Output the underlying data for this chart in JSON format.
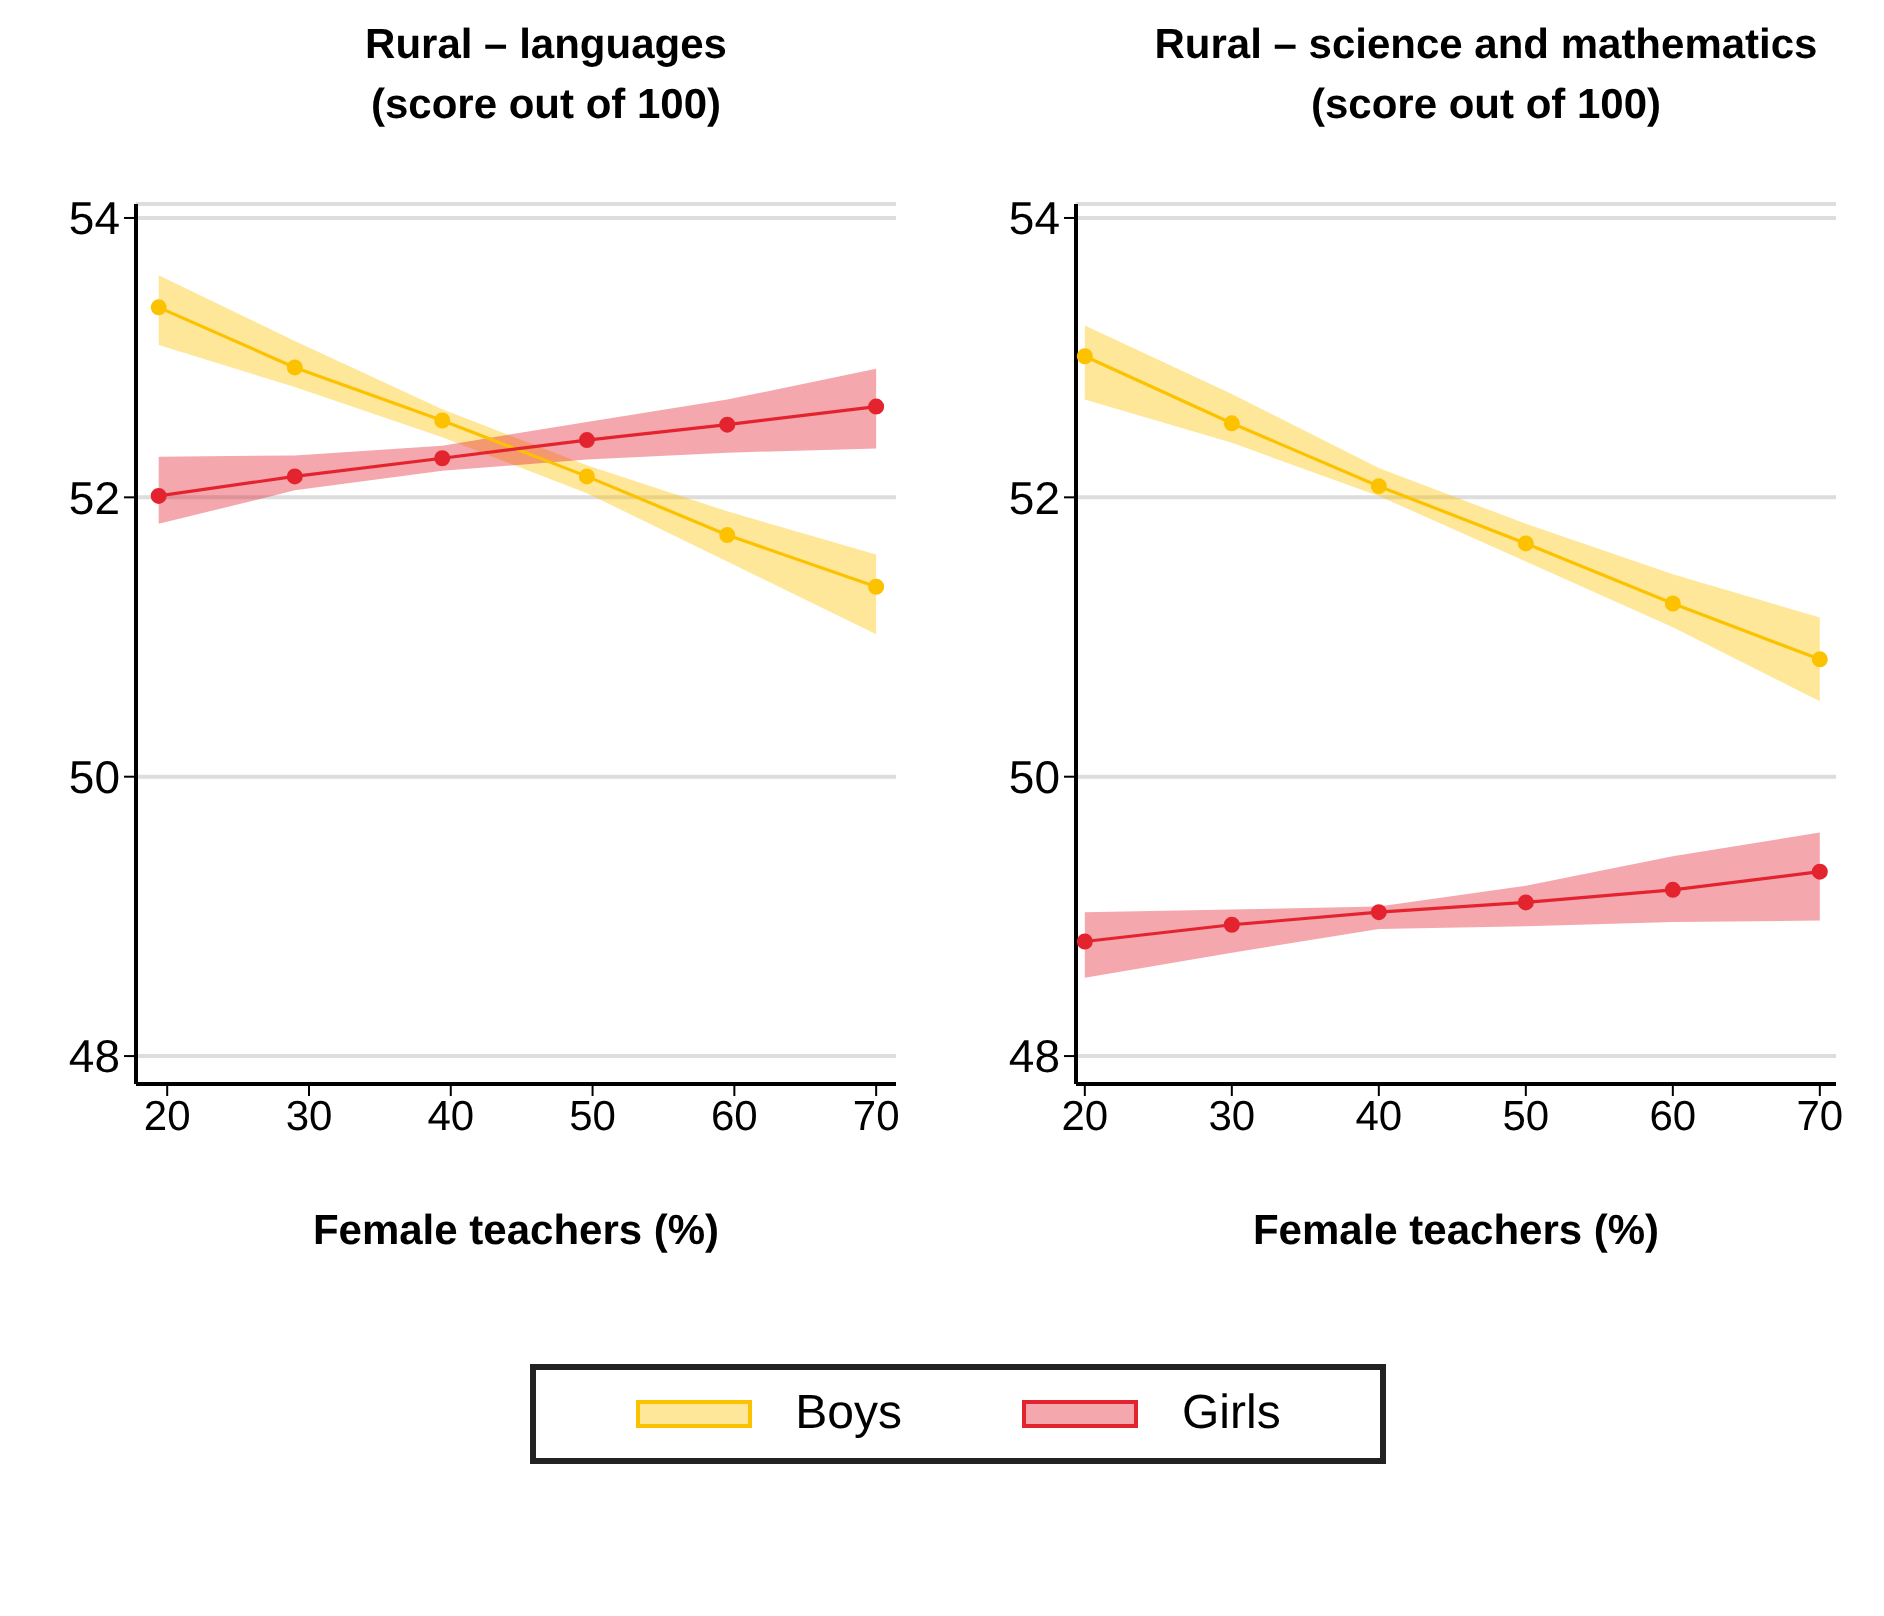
{
  "chart_data": [
    {
      "type": "line",
      "title": "Rural – languages\n(score out of 100)",
      "xlabel": "Female teachers (%)",
      "x": [
        19.4,
        29,
        39.4,
        49.6,
        59.5,
        70
      ],
      "xlim": [
        17.8,
        71.4
      ],
      "xticks": [
        20,
        30,
        40,
        50,
        60,
        70
      ],
      "ylim": [
        47.8,
        54.1
      ],
      "yticks": [
        48,
        50,
        52,
        54
      ],
      "grid": "y",
      "marker": "circle",
      "legend": "bottom",
      "series": [
        {
          "name": "Boys",
          "color": "#fcc200",
          "values": [
            53.36,
            52.93,
            52.55,
            52.15,
            51.73,
            51.36
          ],
          "lower": [
            53.09,
            52.79,
            52.43,
            52.03,
            51.54,
            51.02
          ],
          "upper": [
            53.59,
            53.12,
            52.63,
            52.23,
            51.9,
            51.59
          ]
        },
        {
          "name": "Girls",
          "color": "#e3242f",
          "values": [
            52.01,
            52.15,
            52.28,
            52.41,
            52.52,
            52.65
          ],
          "lower": [
            51.81,
            52.05,
            52.19,
            52.27,
            52.32,
            52.35
          ],
          "upper": [
            52.29,
            52.3,
            52.37,
            52.54,
            52.7,
            52.92
          ]
        }
      ]
    },
    {
      "type": "line",
      "title": "Rural – science and mathematics\n(score out of 100)",
      "xlabel": "Female teachers (%)",
      "x": [
        20,
        30,
        40,
        50,
        60,
        70
      ],
      "xlim": [
        19.4,
        71.1
      ],
      "xticks": [
        20,
        30,
        40,
        50,
        60,
        70
      ],
      "ylim": [
        47.8,
        54.1
      ],
      "yticks": [
        48,
        50,
        52,
        54
      ],
      "grid": "y",
      "marker": "circle",
      "series": [
        {
          "color": "#fcc200",
          "values": [
            53.01,
            52.53,
            52.08,
            51.67,
            51.24,
            50.84
          ],
          "lower": [
            52.7,
            52.39,
            52.01,
            51.54,
            51.07,
            50.54
          ],
          "upper": [
            53.23,
            52.74,
            52.21,
            51.81,
            51.45,
            51.14
          ]
        },
        {
          "color": "#e3242f",
          "values": [
            48.82,
            48.94,
            49.03,
            49.1,
            49.19,
            49.32
          ],
          "lower": [
            48.56,
            48.74,
            48.91,
            48.93,
            48.96,
            48.97
          ],
          "upper": [
            49.03,
            49.05,
            49.07,
            49.22,
            49.43,
            49.6
          ]
        }
      ]
    }
  ]
}
